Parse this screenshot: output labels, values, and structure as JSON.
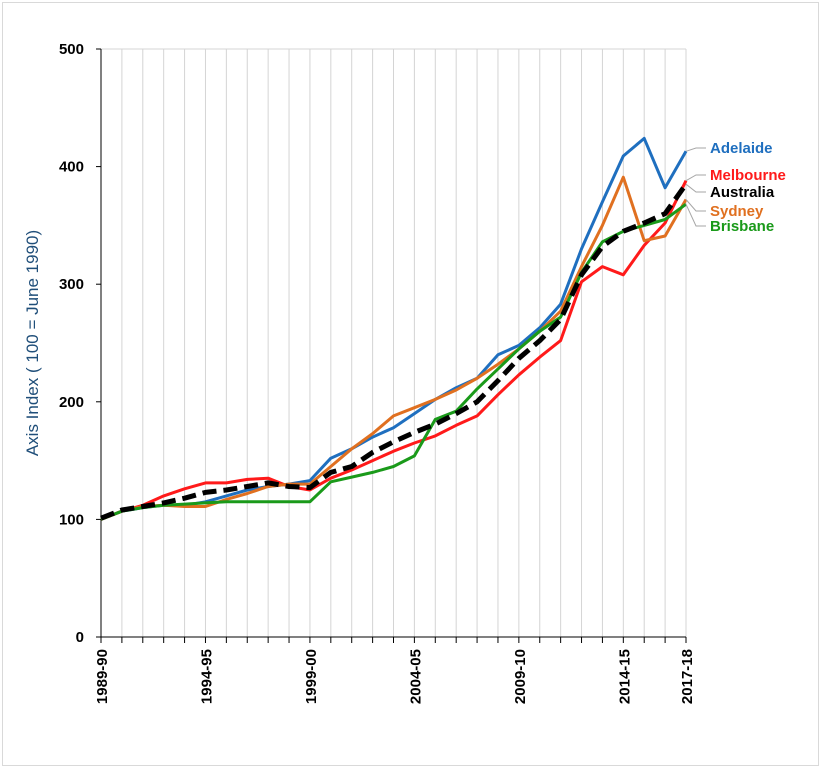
{
  "chart_data": {
    "type": "line",
    "title": "",
    "xlabel": "",
    "ylabel": "Axis Index ( 100 = June 1990)",
    "ylim": [
      0,
      500
    ],
    "yticks": [
      "0",
      "100",
      "200",
      "300",
      "400",
      "500"
    ],
    "x": [
      "1989-90",
      "1990-91",
      "1991-92",
      "1992-93",
      "1993-94",
      "1994-95",
      "1995-96",
      "1996-97",
      "1997-98",
      "1998-99",
      "1999-00",
      "2000-01",
      "2001-02",
      "2002-03",
      "2003-04",
      "2004-05",
      "2005-06",
      "2006-07",
      "2007-08",
      "2008-09",
      "2009-10",
      "2010-11",
      "2011-12",
      "2012-13",
      "2013-14",
      "2014-15",
      "2015-16",
      "2016-17",
      "2017-18"
    ],
    "xtick_labels": [
      "1989-90",
      "1994-95",
      "1999-00",
      "2004-05",
      "2009-10",
      "2014-15",
      "2017-18"
    ],
    "grid": "vertical",
    "series": [
      {
        "name": "Adelaide",
        "color": "#1f6fbf",
        "dashed": false,
        "values": [
          100,
          107,
          110,
          112,
          112,
          115,
          120,
          125,
          128,
          130,
          133,
          152,
          160,
          170,
          178,
          190,
          202,
          212,
          220,
          240,
          248,
          263,
          283,
          330,
          370,
          409,
          424,
          382,
          413
        ]
      },
      {
        "name": "Melbourne",
        "color": "#ff1a1a",
        "dashed": false,
        "values": [
          100,
          107,
          112,
          120,
          126,
          131,
          131,
          134,
          135,
          128,
          125,
          135,
          142,
          150,
          158,
          165,
          171,
          180,
          188,
          206,
          223,
          238,
          252,
          302,
          315,
          308,
          333,
          352,
          388
        ]
      },
      {
        "name": "Sydney",
        "color": "#e07020",
        "dashed": false,
        "values": [
          100,
          107,
          111,
          112,
          111,
          111,
          117,
          122,
          128,
          130,
          130,
          145,
          160,
          173,
          188,
          195,
          202,
          210,
          220,
          232,
          245,
          260,
          277,
          315,
          350,
          391,
          337,
          341,
          372
        ]
      },
      {
        "name": "Brisbane",
        "color": "#1a9a1a",
        "dashed": false,
        "values": [
          100,
          107,
          110,
          112,
          113,
          114,
          115,
          115,
          115,
          115,
          115,
          132,
          136,
          140,
          145,
          154,
          185,
          192,
          211,
          228,
          245,
          260,
          272,
          310,
          336,
          345,
          350,
          355,
          368
        ]
      },
      {
        "name": "Australia",
        "color": "#000000",
        "dashed": true,
        "values": [
          101,
          108,
          111,
          114,
          118,
          123,
          125,
          128,
          131,
          128,
          127,
          140,
          145,
          157,
          166,
          174,
          181,
          190,
          200,
          218,
          237,
          252,
          270,
          308,
          332,
          345,
          352,
          360,
          385
        ]
      }
    ],
    "labels_order": [
      "Adelaide",
      "Melbourne",
      "Australia",
      "Sydney",
      "Brisbane"
    ]
  }
}
